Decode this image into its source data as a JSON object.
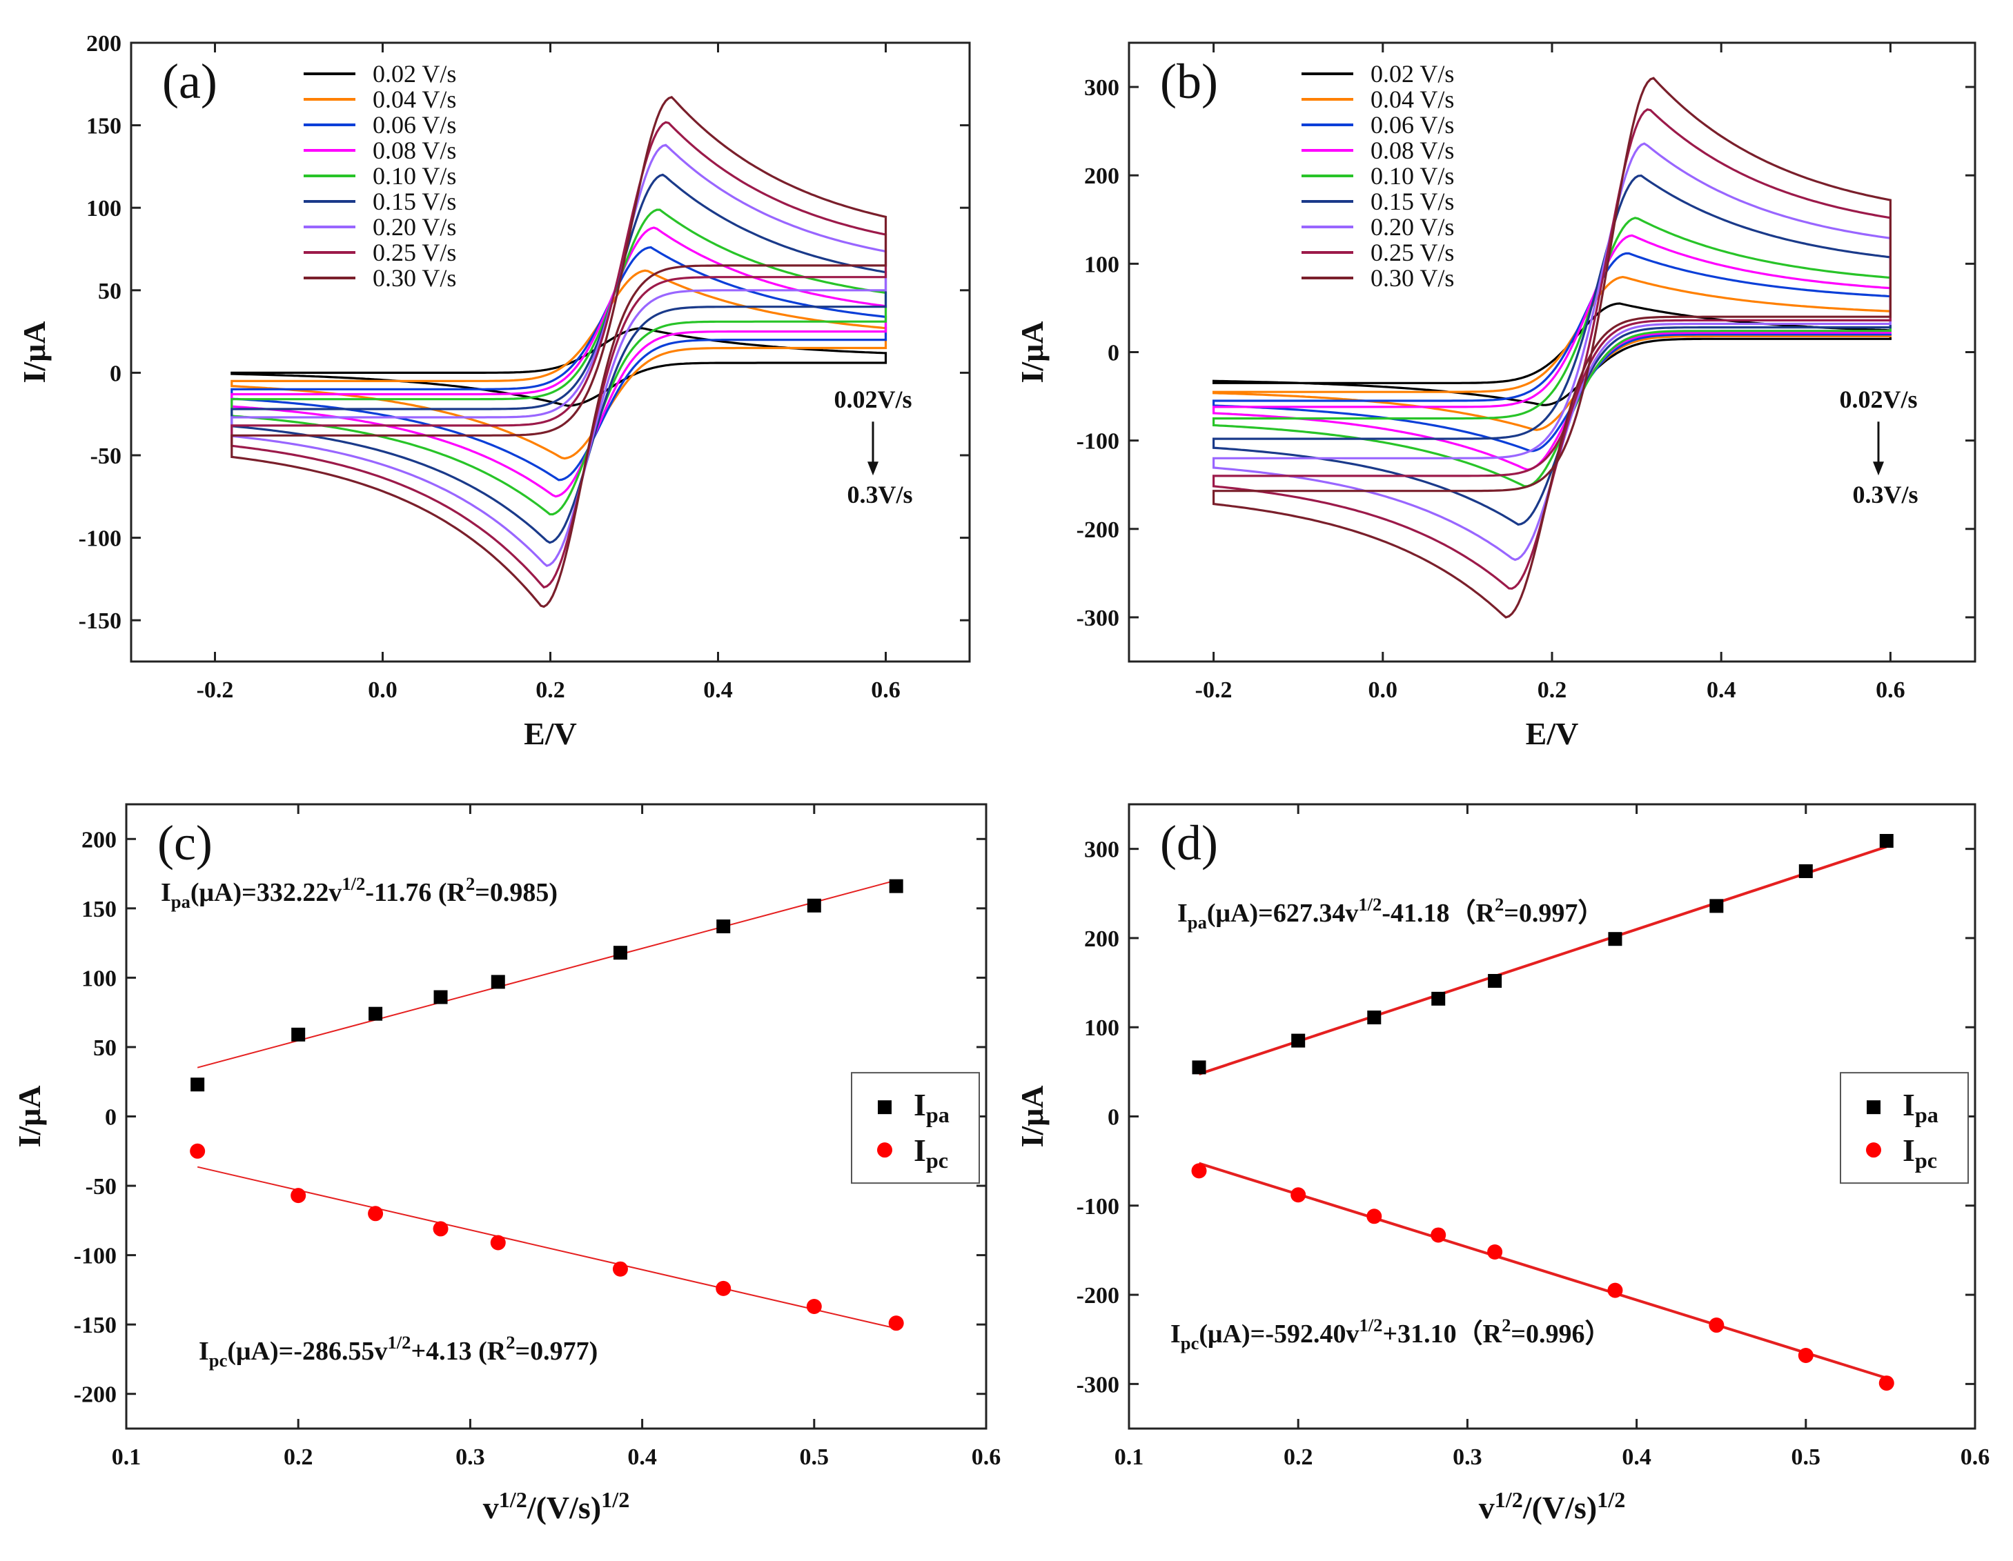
{
  "chart_data": [
    {
      "id": "a",
      "type": "line",
      "panel_label": "(a)",
      "xlabel": "E/V",
      "ylabel": "I/μA",
      "xlim": [
        -0.3,
        0.7
      ],
      "ylim": [
        -175,
        200
      ],
      "xticks": [
        -0.2,
        0.0,
        0.2,
        0.4,
        0.6
      ],
      "xtick_labels": [
        "-0.2",
        "0.0",
        "0.2",
        "0.4",
        "0.6"
      ],
      "yticks": [
        -150,
        -100,
        -50,
        0,
        50,
        100,
        150,
        200
      ],
      "ytick_labels": [
        "-150",
        "-100",
        "-50",
        "0",
        "50",
        "100",
        "150",
        "200"
      ],
      "e_range": [
        -0.18,
        0.6
      ],
      "legend_position": "top-left",
      "annotation": {
        "from": "0.02V/s",
        "to": "0.3V/s"
      },
      "series": [
        {
          "name": "0.02 V/s",
          "color": "#000000",
          "ipa": 27,
          "epa": 0.31,
          "ipc": -20,
          "epc": 0.22,
          "start_cur": 0,
          "end_ox": 9,
          "end_red": 6,
          "neg_cap": 1
        },
        {
          "name": "0.04 V/s",
          "color": "#ff8000",
          "ipa": 62,
          "epa": 0.315,
          "ipc": -52,
          "epc": 0.215,
          "start_cur": -5,
          "end_ox": 20,
          "end_red": 15,
          "neg_cap": -4
        },
        {
          "name": "0.06 V/s",
          "color": "#0b3fd8",
          "ipa": 76,
          "epa": 0.32,
          "ipc": -65,
          "epc": 0.21,
          "start_cur": -10,
          "end_ox": 25,
          "end_red": 20,
          "neg_cap": -11
        },
        {
          "name": "0.08 V/s",
          "color": "#ff00ff",
          "ipa": 88,
          "epa": 0.325,
          "ipc": -75,
          "epc": 0.205,
          "start_cur": -13,
          "end_ox": 30,
          "end_red": 25,
          "neg_cap": -15
        },
        {
          "name": "0.10 V/s",
          "color": "#28c428",
          "ipa": 99,
          "epa": 0.33,
          "ipc": -86,
          "epc": 0.2,
          "start_cur": -16,
          "end_ox": 37,
          "end_red": 31,
          "neg_cap": -20
        },
        {
          "name": "0.15 V/s",
          "color": "#1a3a8a",
          "ipa": 120,
          "epa": 0.335,
          "ipc": -103,
          "epc": 0.198,
          "start_cur": -22,
          "end_ox": 47,
          "end_red": 40,
          "neg_cap": -25
        },
        {
          "name": "0.20 V/s",
          "color": "#9966ff",
          "ipa": 138,
          "epa": 0.338,
          "ipc": -117,
          "epc": 0.195,
          "start_cur": -27,
          "end_ox": 58,
          "end_red": 50,
          "neg_cap": -30
        },
        {
          "name": "0.25 V/s",
          "color": "#9c1a4a",
          "ipa": 152,
          "epa": 0.34,
          "ipc": -130,
          "epc": 0.192,
          "start_cur": -32,
          "end_ox": 67,
          "end_red": 58,
          "neg_cap": -35
        },
        {
          "name": "0.30 V/s",
          "color": "#7a1f2b",
          "ipa": 167,
          "epa": 0.345,
          "ipc": -142,
          "epc": 0.19,
          "start_cur": -38,
          "end_ox": 76,
          "end_red": 65,
          "neg_cap": -41
        }
      ]
    },
    {
      "id": "b",
      "type": "line",
      "panel_label": "(b)",
      "xlabel": "E/V",
      "ylabel": "I/μA",
      "xlim": [
        -0.3,
        0.7
      ],
      "ylim": [
        -350,
        350
      ],
      "xticks": [
        -0.2,
        0.0,
        0.2,
        0.4,
        0.6
      ],
      "xtick_labels": [
        "-0.2",
        "0.0",
        "0.2",
        "0.4",
        "0.6"
      ],
      "yticks": [
        -300,
        -200,
        -100,
        0,
        100,
        200,
        300
      ],
      "ytick_labels": [
        "-300",
        "-200",
        "-100",
        "0",
        "100",
        "200",
        "300"
      ],
      "e_range": [
        -0.2,
        0.6
      ],
      "legend_position": "top-left",
      "annotation": {
        "from": "0.02V/s",
        "to": "0.3V/s"
      },
      "series": [
        {
          "name": "0.02 V/s",
          "color": "#000000",
          "ipa": 55,
          "epa": 0.28,
          "ipc": -60,
          "epc": 0.19,
          "start_cur": -35,
          "end_ox": 20,
          "end_red": 15,
          "neg_cap": -30
        },
        {
          "name": "0.04 V/s",
          "color": "#ff8000",
          "ipa": 85,
          "epa": 0.285,
          "ipc": -88,
          "epc": 0.18,
          "start_cur": -45,
          "end_ox": 40,
          "end_red": 18,
          "neg_cap": -42
        },
        {
          "name": "0.06 V/s",
          "color": "#0b3fd8",
          "ipa": 112,
          "epa": 0.29,
          "ipc": -112,
          "epc": 0.175,
          "start_cur": -55,
          "end_ox": 55,
          "end_red": 20,
          "neg_cap": -55
        },
        {
          "name": "0.08 V/s",
          "color": "#ff00ff",
          "ipa": 132,
          "epa": 0.295,
          "ipc": -133,
          "epc": 0.17,
          "start_cur": -62,
          "end_ox": 62,
          "end_red": 22,
          "neg_cap": -62
        },
        {
          "name": "0.10 V/s",
          "color": "#28c428",
          "ipa": 152,
          "epa": 0.3,
          "ipc": -152,
          "epc": 0.168,
          "start_cur": -75,
          "end_ox": 72,
          "end_red": 24,
          "neg_cap": -75
        },
        {
          "name": "0.15 V/s",
          "color": "#1a3a8a",
          "ipa": 200,
          "epa": 0.305,
          "ipc": -195,
          "epc": 0.16,
          "start_cur": -98,
          "end_ox": 90,
          "end_red": 28,
          "neg_cap": -98
        },
        {
          "name": "0.20 V/s",
          "color": "#9966ff",
          "ipa": 236,
          "epa": 0.31,
          "ipc": -235,
          "epc": 0.155,
          "start_cur": -120,
          "end_ox": 108,
          "end_red": 32,
          "neg_cap": -118
        },
        {
          "name": "0.25 V/s",
          "color": "#9c1a4a",
          "ipa": 275,
          "epa": 0.315,
          "ipc": -268,
          "epc": 0.15,
          "start_cur": -140,
          "end_ox": 127,
          "end_red": 36,
          "neg_cap": -137
        },
        {
          "name": "0.30 V/s",
          "color": "#7a1f2b",
          "ipa": 310,
          "epa": 0.32,
          "ipc": -300,
          "epc": 0.145,
          "start_cur": -157,
          "end_ox": 143,
          "end_red": 40,
          "neg_cap": -155
        }
      ]
    },
    {
      "id": "c",
      "type": "scatter",
      "panel_label": "(c)",
      "xlabel_main": "v",
      "xlabel_sup1": "1/2",
      "xlabel_mid": "/(V/s)",
      "xlabel_sup2": "1/2",
      "ylabel": "I/μA",
      "xlim": [
        0.1,
        0.6
      ],
      "ylim": [
        -225,
        225
      ],
      "xticks": [
        0.1,
        0.2,
        0.3,
        0.4,
        0.5,
        0.6
      ],
      "xtick_labels": [
        "0.1",
        "0.2",
        "0.3",
        "0.4",
        "0.5",
        "0.6"
      ],
      "yticks": [
        -200,
        -150,
        -100,
        -50,
        0,
        50,
        100,
        150,
        200
      ],
      "ytick_labels": [
        "-200",
        "-150",
        "-100",
        "-50",
        "0",
        "50",
        "100",
        "150",
        "200"
      ],
      "legend": {
        "ipa_main": "I",
        "ipa_sub": "pa",
        "ipc_main": "I",
        "ipc_sub": "pc",
        "position": "right"
      },
      "equations": {
        "pa": {
          "pre": "I",
          "sub": "pa",
          "mid": "(μA)=332.22v",
          "sup": "1/2",
          "post": "-11.76 (R",
          "sup2": "2",
          "end": "=0.985)"
        },
        "pc": {
          "pre": "I",
          "sub": "pc",
          "mid": "(μA)=-286.55v",
          "sup": "1/2",
          "post": "+4.13 (R",
          "sup2": "2",
          "end": "=0.977)"
        }
      },
      "x": [
        0.1414,
        0.2,
        0.2449,
        0.2828,
        0.3162,
        0.3873,
        0.4472,
        0.5,
        0.5477
      ],
      "ipa": [
        23,
        59,
        74,
        86,
        97,
        118,
        137,
        152,
        166
      ],
      "ipc": [
        -25,
        -57,
        -70,
        -81,
        -91,
        -110,
        -124,
        -137,
        -149
      ],
      "fit_pa": {
        "slope": 332.22,
        "intercept": -11.76
      },
      "fit_pc": {
        "slope": -286.55,
        "intercept": 4.13
      },
      "ipa_color": "#000000",
      "ipc_color": "#ff0000",
      "fit_color": "#e52020"
    },
    {
      "id": "d",
      "type": "scatter",
      "panel_label": "(d)",
      "xlabel_main": "v",
      "xlabel_sup1": "1/2",
      "xlabel_mid": "/(V/s)",
      "xlabel_sup2": "1/2",
      "ylabel": "I/μA",
      "xlim": [
        0.1,
        0.6
      ],
      "ylim": [
        -350,
        350
      ],
      "xticks": [
        0.1,
        0.2,
        0.3,
        0.4,
        0.5,
        0.6
      ],
      "xtick_labels": [
        "0.1",
        "0.2",
        "0.3",
        "0.4",
        "0.5",
        "0.6"
      ],
      "yticks": [
        -300,
        -200,
        -100,
        0,
        100,
        200,
        300
      ],
      "ytick_labels": [
        "-300",
        "-200",
        "-100",
        "0",
        "100",
        "200",
        "300"
      ],
      "legend": {
        "ipa_main": "I",
        "ipa_sub": "pa",
        "ipc_main": "I",
        "ipc_sub": "pc",
        "position": "right"
      },
      "equations": {
        "pa": {
          "pre": "I",
          "sub": "pa",
          "mid": "(μA)=627.34v",
          "sup": "1/2",
          "post": "-41.18（R",
          "sup2": "2",
          "end": "=0.997）"
        },
        "pc": {
          "pre": "I",
          "sub": "pc",
          "mid": "(μA)=-592.40v",
          "sup": "1/2",
          "post": "+31.10（R",
          "sup2": "2",
          "end": "=0.996）"
        }
      },
      "x": [
        0.1414,
        0.2,
        0.2449,
        0.2828,
        0.3162,
        0.3873,
        0.4472,
        0.5,
        0.5477
      ],
      "ipa": [
        55,
        85,
        111,
        132,
        152,
        199,
        236,
        275,
        309
      ],
      "ipc": [
        -61,
        -88,
        -112,
        -133,
        -152,
        -195,
        -234,
        -268,
        -299
      ],
      "fit_pa": {
        "slope": 627.34,
        "intercept": -41.18
      },
      "fit_pc": {
        "slope": -592.4,
        "intercept": 31.1
      },
      "ipa_color": "#000000",
      "ipc_color": "#ff0000",
      "fit_color": "#e52020"
    }
  ]
}
